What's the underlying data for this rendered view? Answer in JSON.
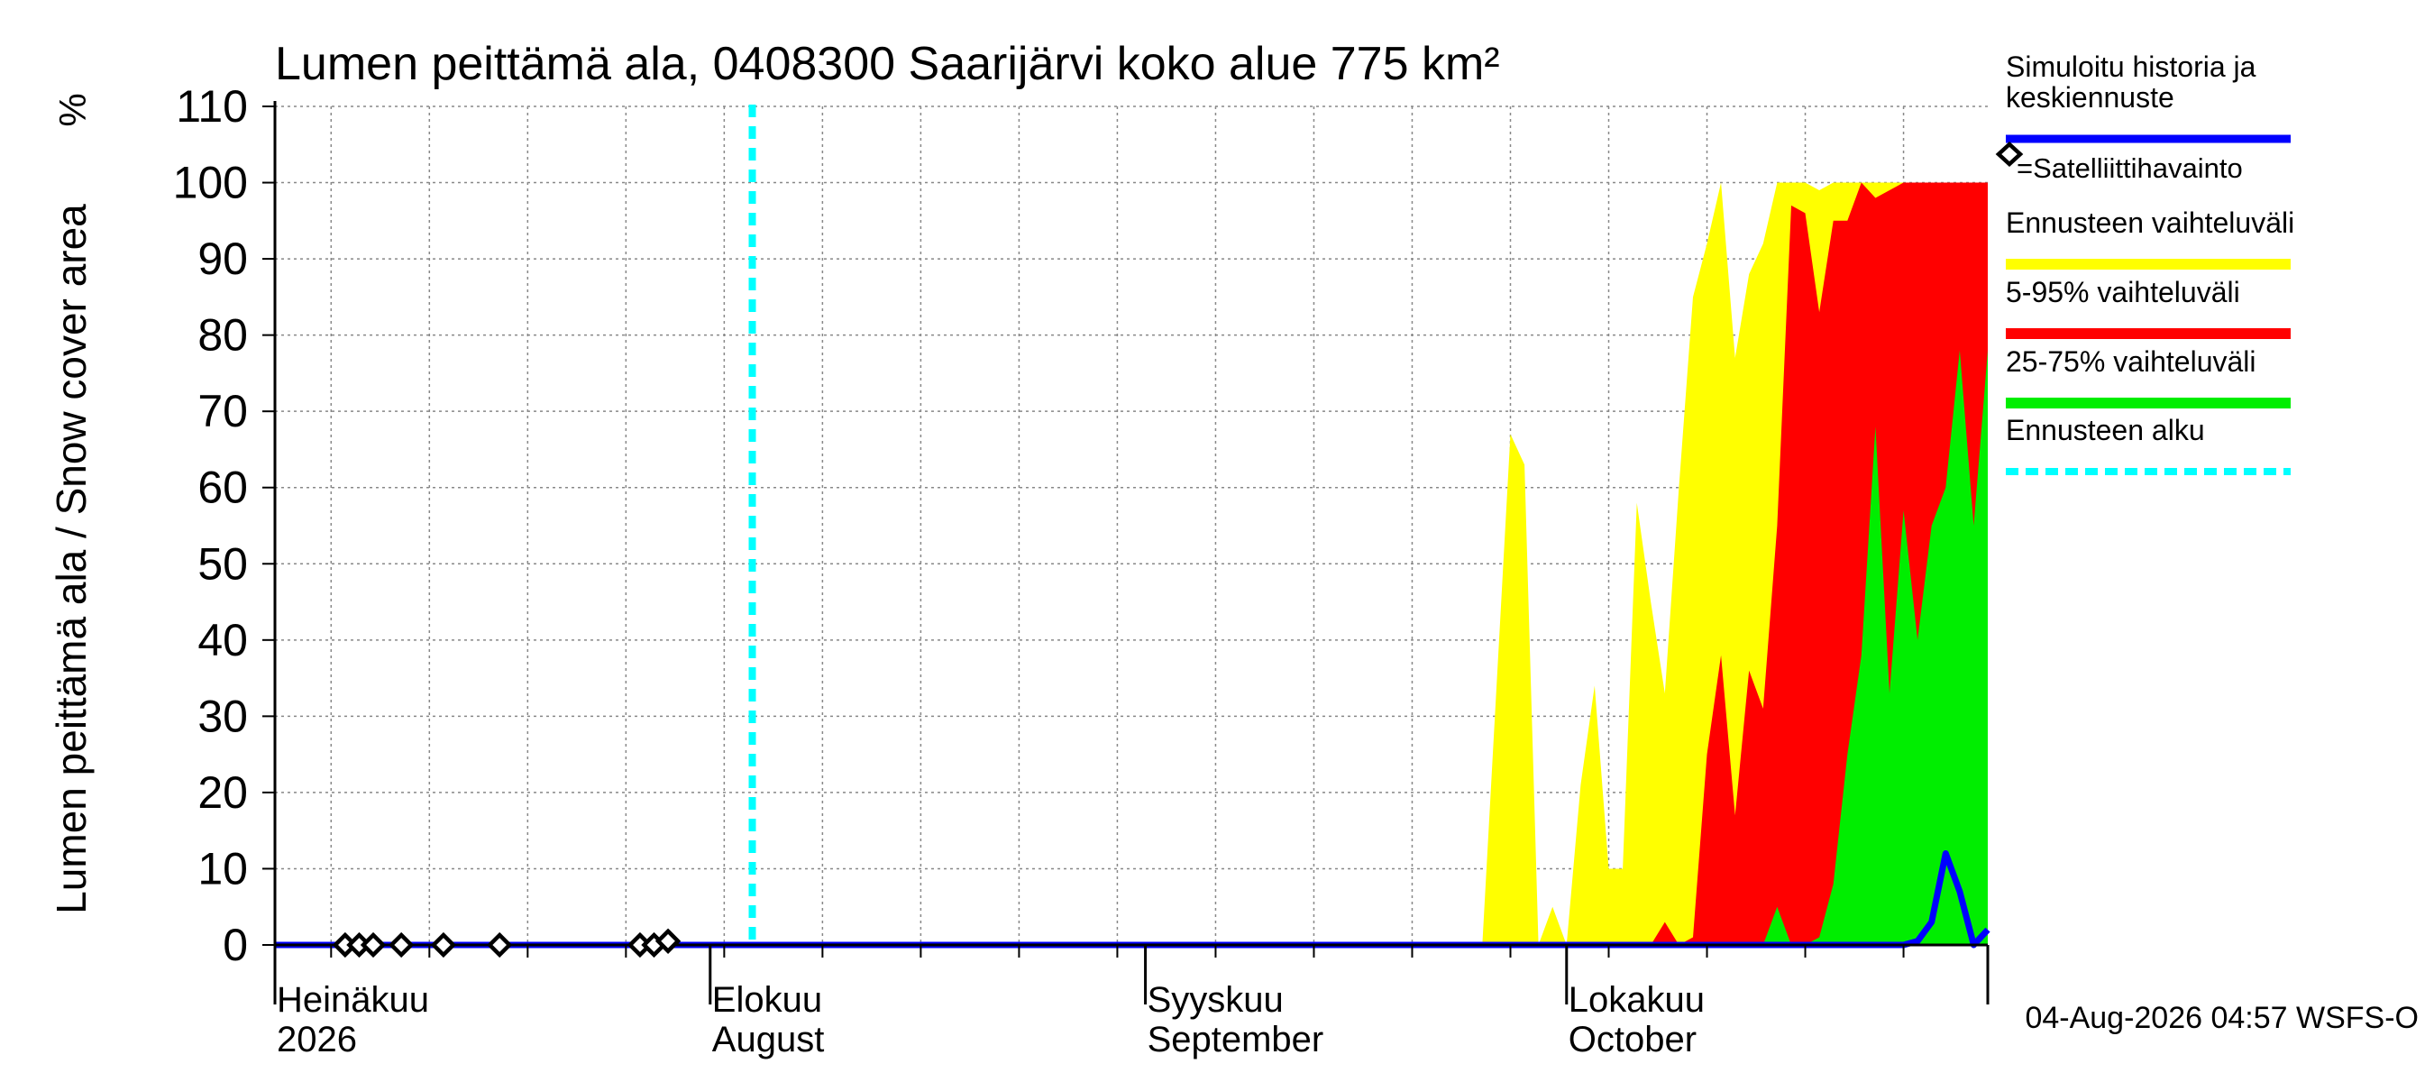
{
  "chart_data": {
    "type": "area",
    "title": "Lumen peittämä ala, 0408300 Saarijärvi koko alue 775 km²",
    "ylabel": "Lumen peittämä ala / Snow cover area",
    "yunit": "%",
    "ylim": [
      0,
      110
    ],
    "yticks": [
      0,
      10,
      20,
      30,
      40,
      50,
      60,
      70,
      80,
      90,
      100,
      110
    ],
    "xlim": [
      "2026-07-01",
      "2026-10-31"
    ],
    "x_tick_labels": [
      {
        "date": "2026-07-01",
        "fi": "Heinäkuu",
        "en": "2026"
      },
      {
        "date": "2026-08-01",
        "fi": "Elokuu",
        "en": "August"
      },
      {
        "date": "2026-09-01",
        "fi": "Syyskuu",
        "en": "September"
      },
      {
        "date": "2026-10-01",
        "fi": "Lokakuu",
        "en": "October"
      }
    ],
    "grid": true,
    "forecast_start": "2026-08-04",
    "legend_position": "right",
    "legend": [
      {
        "label": "Simuloitu historia ja\nkeskiennuste",
        "color": "#0000ff",
        "style": "line"
      },
      {
        "label": "=Satelliittihavainto",
        "color": "#000000",
        "style": "diamond"
      },
      {
        "label": "Ennusteen vaihteluväli",
        "color": "#ffff00",
        "style": "band"
      },
      {
        "label": "5-95% vaihteluväli",
        "color": "#ff0000",
        "style": "band"
      },
      {
        "label": "25-75% vaihteluväli",
        "color": "#00ee00",
        "style": "band"
      },
      {
        "label": "Ennusteen alku",
        "color": "#00ffff",
        "style": "dashed"
      }
    ],
    "series": [
      {
        "name": "Ennusteen vaihteluväli",
        "color": "#ffff00",
        "x": [
          "2026-09-25",
          "2026-09-27",
          "2026-09-28",
          "2026-09-29",
          "2026-09-30",
          "2026-10-01",
          "2026-10-02",
          "2026-10-03",
          "2026-10-04",
          "2026-10-05",
          "2026-10-06",
          "2026-10-07",
          "2026-10-08",
          "2026-10-09",
          "2026-10-10",
          "2026-10-11",
          "2026-10-12",
          "2026-10-13",
          "2026-10-14",
          "2026-10-15",
          "2026-10-16",
          "2026-10-17",
          "2026-10-18",
          "2026-10-19",
          "2026-10-20",
          "2026-10-21",
          "2026-10-22",
          "2026-10-23",
          "2026-10-24",
          "2026-10-25",
          "2026-10-26",
          "2026-10-27",
          "2026-10-28",
          "2026-10-29",
          "2026-10-30",
          "2026-10-31"
        ],
        "values": [
          0,
          67,
          63,
          0,
          5,
          0,
          21,
          34,
          10,
          10,
          58,
          45,
          33,
          60,
          85,
          92,
          100,
          77,
          88,
          92,
          100,
          100,
          100,
          99,
          100,
          100,
          100,
          100,
          100,
          100,
          100,
          100,
          100,
          100,
          100,
          100
        ]
      },
      {
        "name": "5-95% vaihteluväli",
        "color": "#ff0000",
        "x": [
          "2026-10-07",
          "2026-10-08",
          "2026-10-09",
          "2026-10-10",
          "2026-10-11",
          "2026-10-12",
          "2026-10-13",
          "2026-10-14",
          "2026-10-15",
          "2026-10-16",
          "2026-10-17",
          "2026-10-18",
          "2026-10-19",
          "2026-10-20",
          "2026-10-21",
          "2026-10-22",
          "2026-10-23",
          "2026-10-24",
          "2026-10-25",
          "2026-10-26",
          "2026-10-27",
          "2026-10-28",
          "2026-10-29",
          "2026-10-30",
          "2026-10-31"
        ],
        "values": [
          0,
          3,
          0,
          1,
          25,
          38,
          17,
          36,
          31,
          55,
          97,
          96,
          83,
          95,
          95,
          100,
          98,
          99,
          100,
          100,
          100,
          100,
          100,
          100,
          100
        ]
      },
      {
        "name": "25-75% vaihteluväli",
        "color": "#00ee00",
        "x": [
          "2026-10-15",
          "2026-10-16",
          "2026-10-17",
          "2026-10-18",
          "2026-10-19",
          "2026-10-20",
          "2026-10-21",
          "2026-10-22",
          "2026-10-23",
          "2026-10-24",
          "2026-10-25",
          "2026-10-26",
          "2026-10-27",
          "2026-10-28",
          "2026-10-29",
          "2026-10-30",
          "2026-10-31"
        ],
        "values": [
          0,
          5,
          0,
          0,
          1,
          8,
          25,
          38,
          68,
          33,
          57,
          40,
          55,
          60,
          78,
          55,
          78
        ]
      },
      {
        "name": "Simuloitu historia ja keskiennuste",
        "color": "#0000ff",
        "x": [
          "2026-07-01",
          "2026-10-25",
          "2026-10-26",
          "2026-10-27",
          "2026-10-28",
          "2026-10-29",
          "2026-10-30",
          "2026-10-31"
        ],
        "values": [
          0,
          0,
          0.5,
          3,
          12,
          7,
          0,
          2
        ]
      },
      {
        "name": "=Satelliittihavainto",
        "color": "#000000",
        "x": [
          "2026-07-06",
          "2026-07-07",
          "2026-07-08",
          "2026-07-10",
          "2026-07-13",
          "2026-07-17",
          "2026-07-27",
          "2026-07-28",
          "2026-07-29"
        ],
        "values": [
          0,
          0,
          0,
          0,
          0,
          0,
          0,
          0,
          0.5
        ]
      }
    ]
  },
  "timestamp": "04-Aug-2026 04:57 WSFS-O"
}
